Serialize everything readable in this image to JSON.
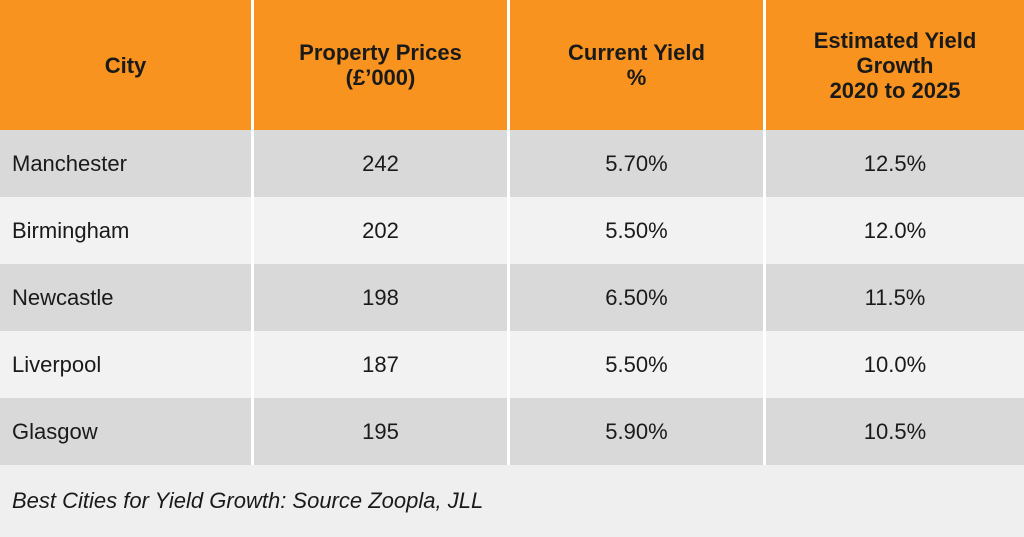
{
  "chart_data": {
    "type": "table",
    "columns": [
      {
        "lines": [
          "City"
        ]
      },
      {
        "lines": [
          "Property Prices",
          "(£’000)"
        ]
      },
      {
        "lines": [
          "Current Yield",
          "%"
        ]
      },
      {
        "lines": [
          "Estimated Yield",
          "Growth",
          "2020 to 2025"
        ]
      }
    ],
    "rows": [
      {
        "city": "Manchester",
        "price": "242",
        "current_yield": "5.70%",
        "yield_growth": "12.5%"
      },
      {
        "city": "Birmingham",
        "price": "202",
        "current_yield": "5.50%",
        "yield_growth": "12.0%"
      },
      {
        "city": "Newcastle",
        "price": "198",
        "current_yield": "6.50%",
        "yield_growth": "11.5%"
      },
      {
        "city": "Liverpool",
        "price": "187",
        "current_yield": "5.50%",
        "yield_growth": "10.0%"
      },
      {
        "city": "Glasgow",
        "price": "195",
        "current_yield": "5.90%",
        "yield_growth": "10.5%"
      }
    ],
    "footnote": "Best Cities for Yield Growth: Source Zoopla, JLL",
    "colors": {
      "header": "#f7931e",
      "row_dark": "#d9d9d9",
      "row_light": "#f2f2f2",
      "footnote_bg": "#efefef"
    }
  }
}
